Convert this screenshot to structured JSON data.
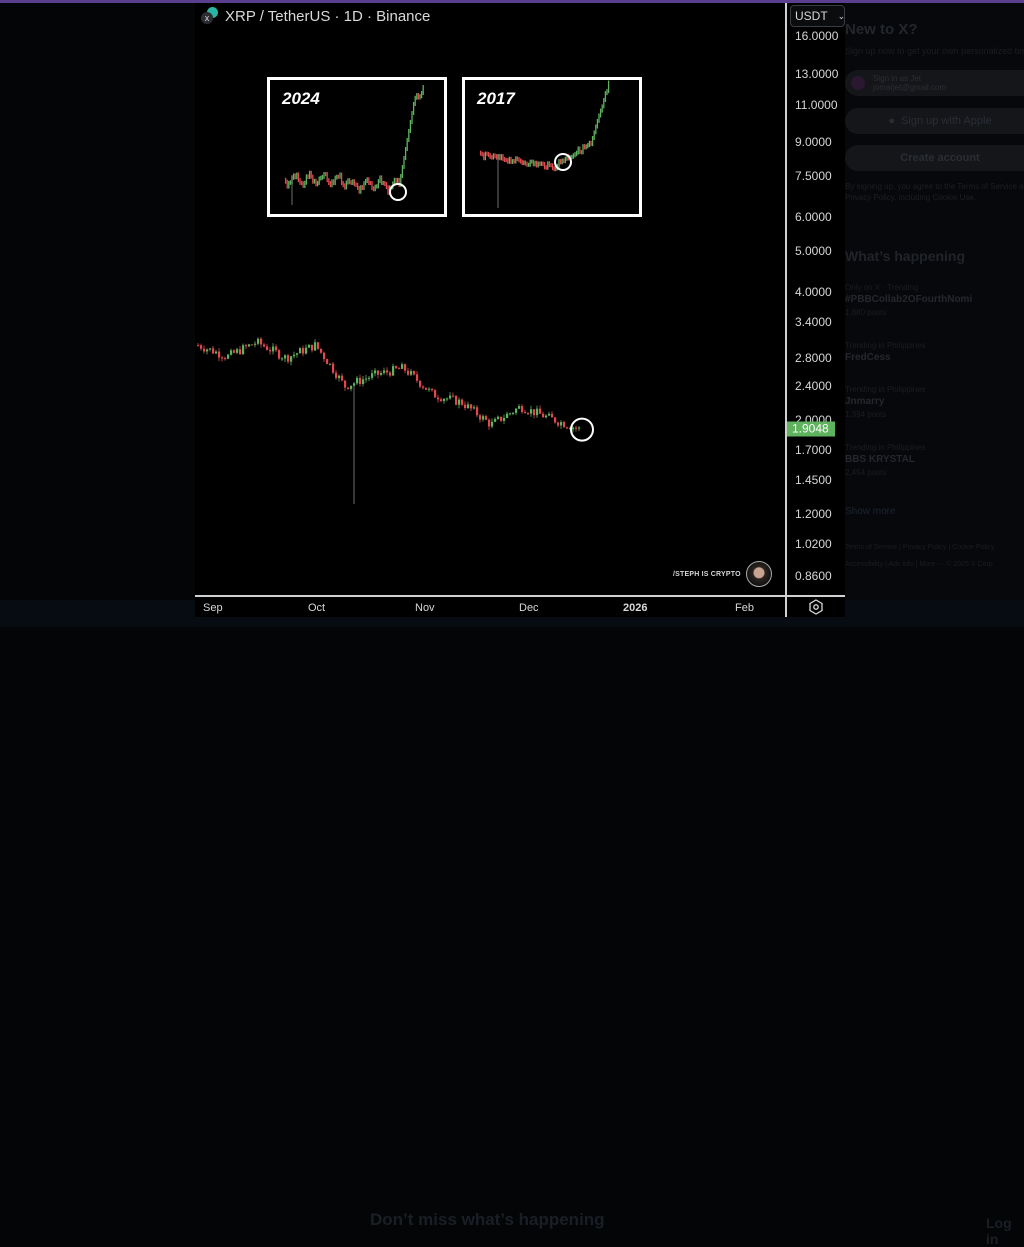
{
  "window": {
    "accent_bar_color": "#5b3f8f"
  },
  "chart_header": {
    "title": "XRP / TetherUS · 1D · Binance",
    "symbol": "XRP",
    "quote": "TetherUS",
    "interval": "1D",
    "exchange": "Binance"
  },
  "currency_select": {
    "value": "USDT"
  },
  "price_axis": {
    "labels": [
      "16.0000",
      "13.0000",
      "11.0000",
      "9.0000",
      "7.5000",
      "6.0000",
      "5.0000",
      "4.0000",
      "3.4000",
      "2.8000",
      "2.4000",
      "2.0000",
      "1.7000",
      "1.4500",
      "1.2000",
      "1.0200",
      "0.8600"
    ],
    "last_price": "1.9048",
    "last_price_color": "#5fb35f"
  },
  "time_axis": {
    "labels": [
      {
        "text": "Sep",
        "x": 8,
        "bold": false
      },
      {
        "text": "Oct",
        "x": 113,
        "bold": false
      },
      {
        "text": "Nov",
        "x": 220,
        "bold": false
      },
      {
        "text": "Dec",
        "x": 324,
        "bold": false
      },
      {
        "text": "2026",
        "x": 428,
        "bold": true
      },
      {
        "text": "Feb",
        "x": 540,
        "bold": false
      }
    ]
  },
  "insets": [
    {
      "label": "2024"
    },
    {
      "label": "2017"
    }
  ],
  "watermark": {
    "text": "/STEPH IS CRYPTO"
  },
  "colors": {
    "up": "#5fb35f",
    "down": "#e04a4f",
    "wick": "#8a8a8a"
  },
  "chart_data": {
    "type": "candlestick",
    "title": "XRP / TetherUS · 1D · Binance",
    "xlabel": "",
    "ylabel": "USDT (log scale)",
    "y_scale": "log",
    "ylim": [
      0.86,
      16.0
    ],
    "x_ticks": [
      "Sep",
      "Oct",
      "Nov",
      "Dec",
      "2026",
      "Feb"
    ],
    "last_price": 1.9048,
    "annotations": [
      "Circle marking latest candle near 1.90",
      "Inset '2024': XRP chart showing sideways range then vertical breakout from circled low",
      "Inset '2017': XRP chart showing sideways range then vertical breakout from circled low"
    ],
    "approx_closes": [
      {
        "period": "late Aug",
        "close": 3.0
      },
      {
        "period": "early Sep",
        "close": 2.82
      },
      {
        "period": "mid Sep",
        "close": 3.05
      },
      {
        "period": "late Sep",
        "close": 2.8
      },
      {
        "period": "early Oct",
        "close": 3.0
      },
      {
        "period": "Oct 10 (wick low ~1.27)",
        "close": 2.4
      },
      {
        "period": "mid Oct",
        "close": 2.55
      },
      {
        "period": "late Oct",
        "close": 2.65
      },
      {
        "period": "early Nov",
        "close": 2.3
      },
      {
        "period": "mid Nov",
        "close": 2.2
      },
      {
        "period": "late Nov",
        "close": 1.95
      },
      {
        "period": "early Dec",
        "close": 2.15
      },
      {
        "period": "mid Dec",
        "close": 2.02
      },
      {
        "period": "latest",
        "close": 1.9048
      }
    ]
  },
  "x_sidebar": {
    "heading": "New to X?",
    "subtext": "Sign up now to get your own personalized timeline!",
    "signin_label": "Sign in as Jet",
    "signin_email": "jomarjet@gmail.com",
    "apple_label": "Sign up with Apple",
    "create_label": "Create account",
    "terms": [
      "By signing up, you agree to the Terms of Service and",
      "Privacy Policy, including Cookie Use."
    ],
    "whats_happening": "What’s happening",
    "trends": [
      {
        "category": "Only on X · Trending",
        "name": "#PBBCollab2OFourthNomi",
        "posts": "1,880 posts"
      },
      {
        "category": "Trending in Philippines",
        "name": "FredCess",
        "posts": ""
      },
      {
        "category": "Trending in Philippines",
        "name": "Jnmarry",
        "posts": "1,394 posts"
      },
      {
        "category": "Trending in Philippines",
        "name": "BBS KRYSTAL",
        "posts": "2,454 posts"
      }
    ],
    "show_more": "Show more",
    "footer_row1": "Terms of Service  |  Privacy Policy  |  Cookie Policy",
    "footer_row2": "Accessibility  |  Ads info  |  More ···  © 2025 X Corp.",
    "bottom_promo": "Don’t miss what’s happening",
    "login": "Log in"
  }
}
